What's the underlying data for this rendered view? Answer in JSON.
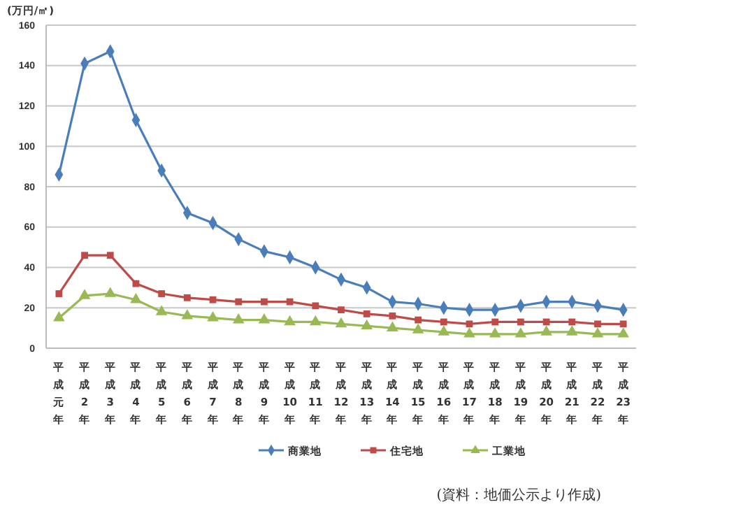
{
  "chart_data": {
    "type": "line",
    "ylabel": "(万円/㎡)",
    "categories": [
      "平成元年",
      "平成2年",
      "平成3年",
      "平成4年",
      "平成5年",
      "平成6年",
      "平成7年",
      "平成8年",
      "平成9年",
      "平成10年",
      "平成11年",
      "平成12年",
      "平成13年",
      "平成14年",
      "平成15年",
      "平成16年",
      "平成17年",
      "平成18年",
      "平成19年",
      "平成20年",
      "平成21年",
      "平成22年",
      "平成23年"
    ],
    "series": [
      {
        "name": "商業地",
        "color": "#4a7ebb",
        "marker": "diamond",
        "values": [
          86,
          141,
          147,
          113,
          88,
          67,
          62,
          54,
          48,
          45,
          40,
          34,
          30,
          23,
          22,
          20,
          19,
          19,
          21,
          23,
          23,
          21,
          19
        ]
      },
      {
        "name": "住宅地",
        "color": "#be4b48",
        "marker": "square",
        "values": [
          27,
          46,
          46,
          32,
          27,
          25,
          24,
          23,
          23,
          23,
          21,
          19,
          17,
          16,
          14,
          13,
          12,
          13,
          13,
          13,
          13,
          12,
          12
        ]
      },
      {
        "name": "工業地",
        "color": "#98b954",
        "marker": "triangle",
        "values": [
          15,
          26,
          27,
          24,
          18,
          16,
          15,
          14,
          14,
          13,
          13,
          12,
          11,
          10,
          9,
          8,
          7,
          7,
          7,
          8,
          8,
          7,
          7
        ]
      }
    ],
    "ylim": [
      0,
      160
    ],
    "yticks": [
      0,
      20,
      40,
      60,
      80,
      100,
      120,
      140,
      160
    ],
    "grid": "y",
    "legend": "bottom",
    "annotations": [
      "(資料：地価公示より作成)"
    ]
  }
}
